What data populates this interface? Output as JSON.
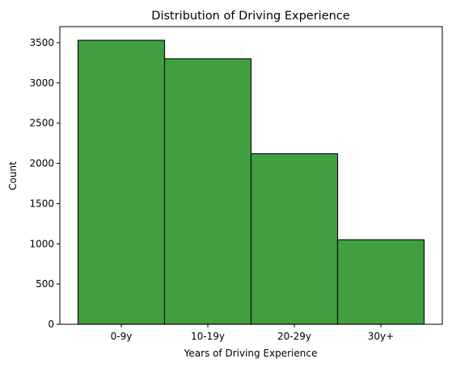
{
  "chart_data": {
    "type": "bar",
    "title": "Distribution of Driving Experience",
    "xlabel": "Years of Driving Experience",
    "ylabel": "Count",
    "categories": [
      "0-9y",
      "10-19y",
      "20-29y",
      "30y+"
    ],
    "values": [
      3530,
      3300,
      2120,
      1050
    ],
    "ylim": [
      0,
      3700
    ],
    "yticks": [
      0,
      500,
      1000,
      1500,
      2000,
      2500,
      3000,
      3500
    ],
    "grid": false,
    "colors": {
      "bar_fill": "#40a040",
      "bar_edge": "#111111"
    }
  }
}
